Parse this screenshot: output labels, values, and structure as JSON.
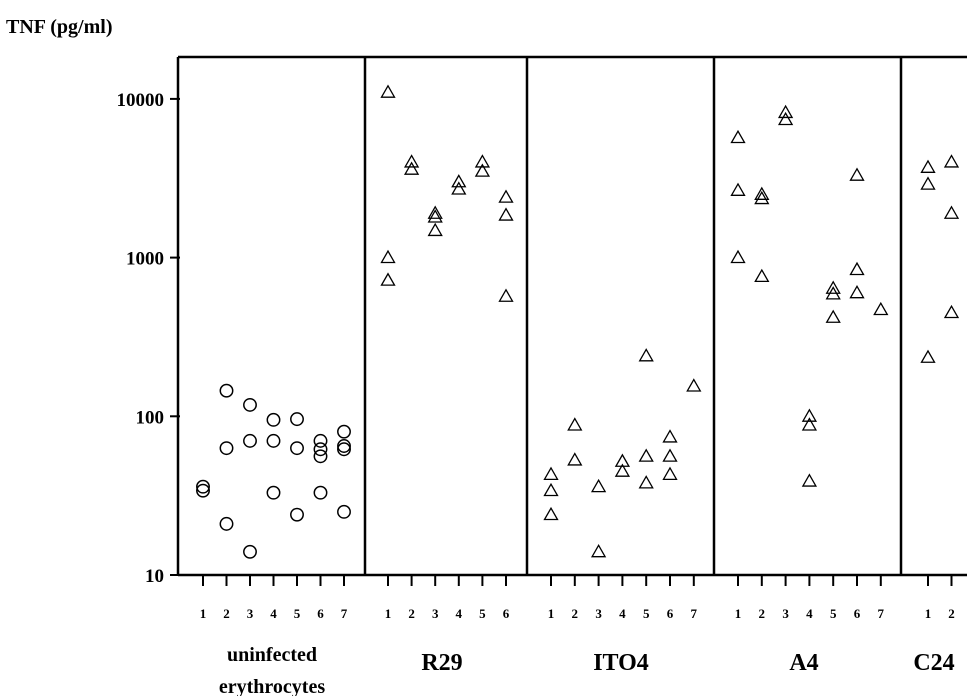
{
  "chart_data": {
    "type": "scatter",
    "ylabel": "TNF (pg/ml)",
    "yscale": "log",
    "ylim": [
      10,
      18000
    ],
    "yticks": [
      "10000",
      "1000",
      "100",
      "10"
    ],
    "groups": [
      {
        "label_lines": [
          "uninfected",
          "erythrocytes"
        ],
        "marker": "circle",
        "x_labels": [
          "1",
          "2",
          "3",
          "4",
          "5",
          "6",
          "7"
        ],
        "points": [
          [
            1,
            36
          ],
          [
            1,
            34
          ],
          [
            2,
            145
          ],
          [
            2,
            63
          ],
          [
            2,
            21
          ],
          [
            3,
            118
          ],
          [
            3,
            70
          ],
          [
            3,
            14
          ],
          [
            4,
            95
          ],
          [
            4,
            70
          ],
          [
            4,
            33
          ],
          [
            5,
            96
          ],
          [
            5,
            63
          ],
          [
            5,
            24
          ],
          [
            6,
            70
          ],
          [
            6,
            62
          ],
          [
            6,
            56
          ],
          [
            6,
            33
          ],
          [
            7,
            80
          ],
          [
            7,
            65
          ],
          [
            7,
            62
          ],
          [
            7,
            25
          ]
        ]
      },
      {
        "label_lines": [
          "R29"
        ],
        "marker": "triangle",
        "x_labels": [
          "1",
          "2",
          "3",
          "4",
          "5",
          "6"
        ],
        "points": [
          [
            1,
            11000
          ],
          [
            1,
            1000
          ],
          [
            1,
            720
          ],
          [
            2,
            4000
          ],
          [
            2,
            3600
          ],
          [
            3,
            1900
          ],
          [
            3,
            1800
          ],
          [
            3,
            1480
          ],
          [
            4,
            3000
          ],
          [
            4,
            2700
          ],
          [
            5,
            4000
          ],
          [
            5,
            3500
          ],
          [
            6,
            2400
          ],
          [
            6,
            1850
          ],
          [
            6,
            570
          ]
        ]
      },
      {
        "label_lines": [
          "ITO4"
        ],
        "marker": "triangle",
        "x_labels": [
          "1",
          "2",
          "3",
          "4",
          "5",
          "6",
          "7"
        ],
        "points": [
          [
            1,
            43
          ],
          [
            1,
            34
          ],
          [
            1,
            24
          ],
          [
            2,
            88
          ],
          [
            2,
            53
          ],
          [
            3,
            36
          ],
          [
            3,
            14
          ],
          [
            4,
            52
          ],
          [
            4,
            45
          ],
          [
            5,
            240
          ],
          [
            5,
            56
          ],
          [
            5,
            38
          ],
          [
            6,
            74
          ],
          [
            6,
            56
          ],
          [
            6,
            43
          ],
          [
            7,
            155
          ]
        ]
      },
      {
        "label_lines": [
          "A4"
        ],
        "marker": "triangle",
        "x_labels": [
          "1",
          "2",
          "3",
          "4",
          "5",
          "6",
          "7"
        ],
        "points": [
          [
            1,
            5700
          ],
          [
            1,
            2650
          ],
          [
            1,
            1000
          ],
          [
            2,
            2500
          ],
          [
            2,
            2350
          ],
          [
            2,
            760
          ],
          [
            3,
            8200
          ],
          [
            3,
            7400
          ],
          [
            4,
            100
          ],
          [
            4,
            88
          ],
          [
            4,
            39
          ],
          [
            5,
            640
          ],
          [
            5,
            590
          ],
          [
            5,
            420
          ],
          [
            6,
            3300
          ],
          [
            6,
            840
          ],
          [
            6,
            600
          ],
          [
            7,
            470
          ]
        ]
      },
      {
        "label_lines": [
          "C24"
        ],
        "marker": "triangle",
        "x_labels": [
          "1",
          "2"
        ],
        "points": [
          [
            1,
            3700
          ],
          [
            1,
            2900
          ],
          [
            1,
            235
          ],
          [
            2,
            4000
          ],
          [
            2,
            1900
          ],
          [
            2,
            450
          ]
        ]
      }
    ]
  }
}
